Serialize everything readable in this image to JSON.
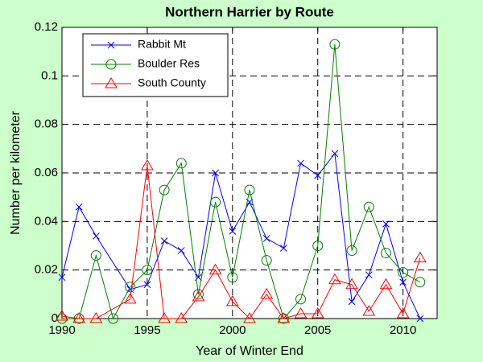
{
  "chart_data": {
    "type": "line",
    "title": "Northern Harrier by Route",
    "x_label": "Year of Winter End",
    "y_label": "Number per kilometer",
    "xlim": [
      1990,
      2012
    ],
    "ylim": [
      0,
      0.12
    ],
    "xticks": [
      1990,
      1995,
      2000,
      2005,
      2010
    ],
    "yticks": [
      0,
      0.02,
      0.04,
      0.06,
      0.08,
      0.1,
      0.12
    ],
    "grid": true,
    "legend_position": "upper-left",
    "series": [
      {
        "name": "Rabbit Mt",
        "color": "#0000ff",
        "marker": "x",
        "x": [
          1990,
          1991,
          1992,
          1994,
          1995,
          1996,
          1997,
          1998,
          1999,
          2000,
          2001,
          2002,
          2003,
          2004,
          2005,
          2006,
          2007,
          2008,
          2009,
          2010,
          2011
        ],
        "values": [
          0.017,
          0.046,
          0.034,
          0.012,
          0.014,
          0.032,
          0.028,
          0.017,
          0.06,
          0.036,
          0.048,
          0.033,
          0.029,
          0.064,
          0.059,
          0.068,
          0.007,
          0.018,
          0.039,
          0.015,
          0
        ]
      },
      {
        "name": "Boulder Res",
        "color": "#008000",
        "marker": "circle",
        "x": [
          1990,
          1991,
          1992,
          1993,
          1994,
          1995,
          1996,
          1997,
          1998,
          1999,
          2000,
          2001,
          2002,
          2003,
          2004,
          2005,
          2006,
          2007,
          2008,
          2009,
          2010,
          2011
        ],
        "values": [
          0,
          0,
          0.026,
          0,
          0.013,
          0.02,
          0.053,
          0.064,
          0.01,
          0.048,
          0.017,
          0.053,
          0.024,
          0,
          0.008,
          0.03,
          0.113,
          0.028,
          0.046,
          0.027,
          0.019,
          0.015
        ]
      },
      {
        "name": "South County",
        "color": "#ff0000",
        "marker": "triangle",
        "x": [
          1990,
          1991,
          1992,
          1994,
          1995,
          1996,
          1997,
          1998,
          1999,
          2000,
          2001,
          2002,
          2003,
          2004,
          2005,
          2006,
          2007,
          2008,
          2009,
          2010,
          2011
        ],
        "values": [
          0.001,
          0,
          0,
          0.008,
          0.063,
          0,
          0,
          0.009,
          0.02,
          0.007,
          0,
          0.01,
          0,
          0.002,
          0.002,
          0.016,
          0.014,
          0.003,
          0.014,
          0.002,
          0.025
        ]
      }
    ]
  }
}
